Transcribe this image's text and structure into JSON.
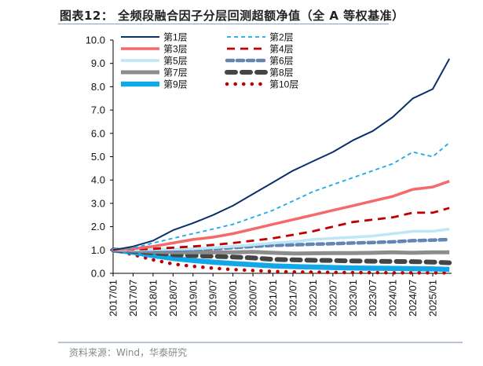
{
  "title": "图表12：  全频段融合因子分层回测超额净值（全 A 等权基准）",
  "source": "资料来源：Wind，华泰研究",
  "chart_data": {
    "type": "line",
    "title": "图表12：  全频段融合因子分层回测超额净值（全 A 等权基准）",
    "xlabel": "",
    "ylabel": "",
    "ylim": [
      0,
      10
    ],
    "yticks": [
      "0.0",
      "1.0",
      "2.0",
      "3.0",
      "4.0",
      "5.0",
      "6.0",
      "7.0",
      "8.0",
      "9.0",
      "10.0"
    ],
    "x_tick_labels": [
      "2017/01",
      "2017/07",
      "2018/01",
      "2018/07",
      "2019/01",
      "2019/07",
      "2020/01",
      "2020/07",
      "2021/01",
      "2021/07",
      "2022/01",
      "2022/07",
      "2023/01",
      "2023/07",
      "2024/01",
      "2024/07",
      "2025/01"
    ],
    "x": [
      "2017/01",
      "2017/07",
      "2018/01",
      "2018/07",
      "2019/01",
      "2019/07",
      "2020/01",
      "2020/07",
      "2021/01",
      "2021/07",
      "2022/01",
      "2022/07",
      "2023/01",
      "2023/07",
      "2024/01",
      "2024/07",
      "2025/01",
      "2025/06"
    ],
    "legend_position": "top-left",
    "grid": false,
    "series": [
      {
        "name": "第1层",
        "color": "#0b2f6b",
        "style": "solid",
        "values": [
          1.0,
          1.15,
          1.4,
          1.85,
          2.15,
          2.5,
          2.9,
          3.4,
          3.9,
          4.4,
          4.8,
          5.2,
          5.7,
          6.1,
          6.7,
          7.5,
          7.9,
          9.2
        ]
      },
      {
        "name": "第2层",
        "color": "#19a9e8",
        "style": "dash",
        "values": [
          1.0,
          1.08,
          1.3,
          1.5,
          1.7,
          1.9,
          2.1,
          2.4,
          2.7,
          3.1,
          3.5,
          3.8,
          4.1,
          4.4,
          4.7,
          5.2,
          5.0,
          5.6
        ]
      },
      {
        "name": "第3层",
        "color": "#f46a6a",
        "style": "solid-thick",
        "values": [
          1.0,
          1.05,
          1.15,
          1.3,
          1.45,
          1.55,
          1.7,
          1.9,
          2.1,
          2.3,
          2.5,
          2.7,
          2.9,
          3.1,
          3.3,
          3.6,
          3.7,
          3.95
        ]
      },
      {
        "name": "第4层",
        "color": "#c00000",
        "style": "longdash",
        "values": [
          1.0,
          1.02,
          1.05,
          1.1,
          1.15,
          1.22,
          1.3,
          1.4,
          1.5,
          1.65,
          1.8,
          2.0,
          2.2,
          2.3,
          2.4,
          2.6,
          2.6,
          2.8
        ]
      },
      {
        "name": "第5层",
        "color": "#bde6f7",
        "style": "solid-thick",
        "values": [
          1.0,
          1.0,
          1.02,
          1.03,
          1.05,
          1.1,
          1.15,
          1.22,
          1.3,
          1.35,
          1.45,
          1.5,
          1.55,
          1.6,
          1.7,
          1.8,
          1.8,
          1.9
        ]
      },
      {
        "name": "第6层",
        "color": "#6385b3",
        "style": "dash-thick",
        "values": [
          1.0,
          0.98,
          0.97,
          0.98,
          1.0,
          1.05,
          1.1,
          1.15,
          1.2,
          1.22,
          1.25,
          1.27,
          1.3,
          1.32,
          1.35,
          1.4,
          1.42,
          1.45
        ]
      },
      {
        "name": "第7层",
        "color": "#8c8c8c",
        "style": "solid-thick",
        "values": [
          1.0,
          0.97,
          0.93,
          0.9,
          0.9,
          0.9,
          0.9,
          0.92,
          0.88,
          0.85,
          0.86,
          0.87,
          0.87,
          0.88,
          0.9,
          0.88,
          0.9,
          0.9
        ]
      },
      {
        "name": "第8层",
        "color": "#454545",
        "style": "dash-thick",
        "values": [
          1.0,
          0.95,
          0.88,
          0.8,
          0.76,
          0.73,
          0.7,
          0.66,
          0.6,
          0.58,
          0.56,
          0.55,
          0.53,
          0.52,
          0.51,
          0.5,
          0.48,
          0.45
        ]
      },
      {
        "name": "第9层",
        "color": "#12a7e6",
        "style": "solid-thick",
        "values": [
          1.0,
          0.9,
          0.76,
          0.64,
          0.55,
          0.48,
          0.42,
          0.37,
          0.32,
          0.29,
          0.27,
          0.25,
          0.23,
          0.22,
          0.21,
          0.2,
          0.19,
          0.17
        ]
      },
      {
        "name": "第10层",
        "color": "#c00000",
        "style": "dot",
        "values": [
          1.0,
          0.8,
          0.58,
          0.4,
          0.3,
          0.22,
          0.16,
          0.12,
          0.08,
          0.06,
          0.05,
          0.04,
          0.03,
          0.03,
          0.02,
          0.02,
          0.02,
          0.02
        ]
      }
    ]
  }
}
